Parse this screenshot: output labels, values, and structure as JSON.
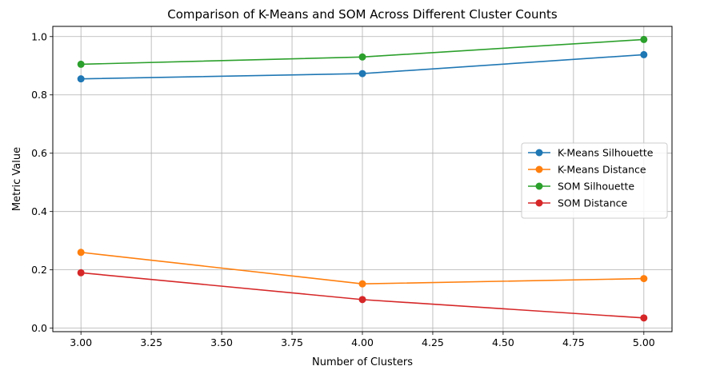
{
  "chart_data": {
    "type": "line",
    "title": "Comparison of K-Means and SOM Across Different Cluster Counts",
    "xlabel": "Number of Clusters",
    "ylabel": "Metric Value",
    "x": [
      3,
      4,
      5
    ],
    "xlim": [
      2.9,
      5.1
    ],
    "ylim": [
      -0.012,
      1.035
    ],
    "xticks": [
      3.0,
      3.25,
      3.5,
      3.75,
      4.0,
      4.25,
      4.5,
      4.75,
      5.0
    ],
    "xtick_labels": [
      "3.00",
      "3.25",
      "3.50",
      "3.75",
      "4.00",
      "4.25",
      "4.50",
      "4.75",
      "5.00"
    ],
    "yticks": [
      0.0,
      0.2,
      0.4,
      0.6,
      0.8,
      1.0
    ],
    "ytick_labels": [
      "0.0",
      "0.2",
      "0.4",
      "0.6",
      "0.8",
      "1.0"
    ],
    "grid": true,
    "legend_position": "center-right",
    "series": [
      {
        "name": "K-Means Silhouette",
        "color": "#1f77b4",
        "values": [
          0.855,
          0.873,
          0.938
        ]
      },
      {
        "name": "K-Means Distance",
        "color": "#ff7f0e",
        "values": [
          0.26,
          0.152,
          0.17
        ]
      },
      {
        "name": "SOM Silhouette",
        "color": "#2ca02c",
        "values": [
          0.905,
          0.93,
          0.99
        ]
      },
      {
        "name": "SOM Distance",
        "color": "#d62728",
        "values": [
          0.19,
          0.098,
          0.035
        ]
      }
    ]
  }
}
